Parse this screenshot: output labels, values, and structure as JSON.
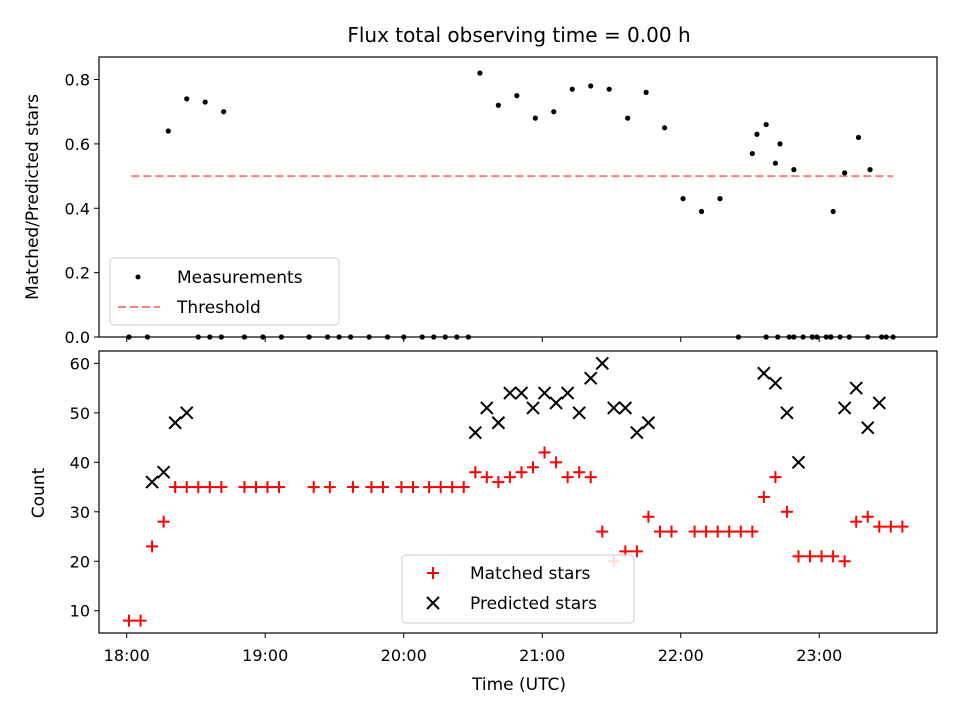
{
  "chart_data": [
    {
      "type": "scatter",
      "title": "Flux total observing time = 0.00 h",
      "ylabel": "Matched/Predicted stars",
      "ylim": [
        0,
        0.87
      ],
      "xlim_hours": [
        17.8,
        23.85
      ],
      "yticks": [
        0.0,
        0.2,
        0.4,
        0.6,
        0.8
      ],
      "ytick_labels": [
        "0.0",
        "0.2",
        "0.4",
        "0.6",
        "0.8"
      ],
      "legend": {
        "placement": "lower-left",
        "entries": [
          "Measurements",
          "Threshold"
        ]
      },
      "series": [
        {
          "name": "Measurements",
          "marker": "dot",
          "color": "#000000",
          "points": [
            [
              "18:01",
              0.0
            ],
            [
              "18:09",
              0.0
            ],
            [
              "18:18",
              0.64
            ],
            [
              "18:26",
              0.74
            ],
            [
              "18:34",
              0.73
            ],
            [
              "18:42",
              0.7
            ],
            [
              "18:31",
              0.0
            ],
            [
              "18:36",
              0.0
            ],
            [
              "18:41",
              0.0
            ],
            [
              "18:51",
              0.0
            ],
            [
              "18:59",
              0.0
            ],
            [
              "19:07",
              0.0
            ],
            [
              "19:19",
              0.0
            ],
            [
              "19:19",
              0.0
            ],
            [
              "19:27",
              0.0
            ],
            [
              "19:32",
              0.0
            ],
            [
              "19:37",
              0.0
            ],
            [
              "19:45",
              0.0
            ],
            [
              "19:53",
              0.0
            ],
            [
              "20:00",
              0.0
            ],
            [
              "20:08",
              0.0
            ],
            [
              "20:13",
              0.0
            ],
            [
              "20:18",
              0.0
            ],
            [
              "20:23",
              0.0
            ],
            [
              "20:28",
              0.0
            ],
            [
              "20:33",
              0.82
            ],
            [
              "20:41",
              0.72
            ],
            [
              "20:49",
              0.75
            ],
            [
              "20:57",
              0.68
            ],
            [
              "21:05",
              0.7
            ],
            [
              "21:13",
              0.77
            ],
            [
              "21:21",
              0.78
            ],
            [
              "21:29",
              0.77
            ],
            [
              "21:37",
              0.68
            ],
            [
              "21:45",
              0.76
            ],
            [
              "21:53",
              0.65
            ],
            [
              "22:01",
              0.43
            ],
            [
              "22:09",
              0.39
            ],
            [
              "22:17",
              0.43
            ],
            [
              "22:25",
              0.0
            ],
            [
              "22:33",
              0.63
            ],
            [
              "22:41",
              0.54
            ],
            [
              "22:49",
              0.0
            ],
            [
              "22:57",
              0.0
            ],
            [
              "23:05",
              0.0
            ],
            [
              "23:13",
              0.0
            ],
            [
              "23:21",
              0.0
            ],
            [
              "23:29",
              0.0
            ],
            [
              "22:37",
              0.0
            ],
            [
              "22:42",
              0.0
            ],
            [
              "22:47",
              0.0
            ],
            [
              "22:53",
              0.0
            ],
            [
              "22:59",
              0.0
            ],
            [
              "23:05",
              0.0
            ],
            [
              "22:31",
              0.57
            ],
            [
              "22:37",
              0.66
            ],
            [
              "22:43",
              0.6
            ],
            [
              "22:49",
              0.52
            ],
            [
              "22:57",
              0.0
            ],
            [
              "23:03",
              0.0
            ],
            [
              "23:09",
              0.0
            ],
            [
              "23:06",
              0.39
            ],
            [
              "23:11",
              0.51
            ],
            [
              "23:17",
              0.62
            ],
            [
              "23:22",
              0.52
            ],
            [
              "23:27",
              0.0
            ],
            [
              "23:32",
              0.0
            ]
          ]
        },
        {
          "name": "Threshold",
          "style": "dashed",
          "color": "#ff7f7f",
          "x": [
            "18:02",
            "23:32"
          ],
          "y": [
            0.5,
            0.5
          ]
        }
      ]
    },
    {
      "type": "scatter",
      "xlabel": "Time (UTC)",
      "ylabel": "Count",
      "ylim": [
        5.5,
        62.5
      ],
      "xlim_hours": [
        17.8,
        23.85
      ],
      "yticks": [
        10,
        20,
        30,
        40,
        50,
        60
      ],
      "ytick_labels": [
        "10",
        "20",
        "30",
        "40",
        "50",
        "60"
      ],
      "xticks": [
        "18:00",
        "19:00",
        "20:00",
        "21:00",
        "22:00",
        "23:00"
      ],
      "legend": {
        "placement": "lower-center",
        "entries": [
          "Matched stars",
          "Predicted stars"
        ]
      },
      "series": [
        {
          "name": "Matched stars",
          "marker": "plus",
          "color": "#ff0000",
          "points": [
            [
              "18:01",
              8
            ],
            [
              "18:06",
              8
            ],
            [
              "18:11",
              23
            ],
            [
              "18:16",
              28
            ],
            [
              "18:21",
              35
            ],
            [
              "18:26",
              35
            ],
            [
              "18:31",
              35
            ],
            [
              "18:36",
              35
            ],
            [
              "18:41",
              35
            ],
            [
              "18:51",
              35
            ],
            [
              "18:56",
              35
            ],
            [
              "19:01",
              35
            ],
            [
              "19:06",
              35
            ],
            [
              "19:21",
              35
            ],
            [
              "19:28",
              35
            ],
            [
              "19:38",
              35
            ],
            [
              "19:46",
              35
            ],
            [
              "19:51",
              35
            ],
            [
              "19:59",
              35
            ],
            [
              "20:04",
              35
            ],
            [
              "20:11",
              35
            ],
            [
              "20:16",
              35
            ],
            [
              "20:21",
              35
            ],
            [
              "20:26",
              35
            ],
            [
              "20:31",
              38
            ],
            [
              "20:36",
              37
            ],
            [
              "20:41",
              36
            ],
            [
              "20:46",
              37
            ],
            [
              "20:51",
              38
            ],
            [
              "20:56",
              39
            ],
            [
              "21:01",
              42
            ],
            [
              "21:06",
              40
            ],
            [
              "21:11",
              37
            ],
            [
              "21:16",
              38
            ],
            [
              "21:21",
              37
            ],
            [
              "21:26",
              26
            ],
            [
              "21:31",
              20
            ],
            [
              "21:36",
              22
            ],
            [
              "21:41",
              22
            ],
            [
              "21:46",
              29
            ],
            [
              "21:51",
              26
            ],
            [
              "21:56",
              26
            ],
            [
              "22:06",
              26
            ],
            [
              "22:11",
              26
            ],
            [
              "22:16",
              26
            ],
            [
              "22:21",
              26
            ],
            [
              "22:26",
              26
            ],
            [
              "22:31",
              26
            ],
            [
              "22:36",
              33
            ],
            [
              "22:41",
              37
            ],
            [
              "22:46",
              30
            ],
            [
              "22:51",
              21
            ],
            [
              "22:56",
              21
            ],
            [
              "23:01",
              21
            ],
            [
              "23:06",
              21
            ],
            [
              "23:11",
              20
            ],
            [
              "23:16",
              28
            ],
            [
              "23:21",
              29
            ],
            [
              "23:26",
              27
            ],
            [
              "23:31",
              27
            ],
            [
              "23:36",
              27
            ]
          ]
        },
        {
          "name": "Predicted stars",
          "marker": "x",
          "color": "#000000",
          "points": [
            [
              "18:11",
              36
            ],
            [
              "18:16",
              38
            ],
            [
              "18:21",
              48
            ],
            [
              "18:26",
              50
            ],
            [
              "20:31",
              46
            ],
            [
              "20:36",
              51
            ],
            [
              "20:41",
              48
            ],
            [
              "20:46",
              54
            ],
            [
              "20:51",
              54
            ],
            [
              "20:56",
              51
            ],
            [
              "21:01",
              54
            ],
            [
              "21:06",
              52
            ],
            [
              "21:11",
              54
            ],
            [
              "21:16",
              50
            ],
            [
              "21:21",
              57
            ],
            [
              "21:26",
              60
            ],
            [
              "21:31",
              51
            ],
            [
              "21:36",
              51
            ],
            [
              "21:41",
              46
            ],
            [
              "21:46",
              48
            ],
            [
              "22:36",
              58
            ],
            [
              "22:41",
              56
            ],
            [
              "22:46",
              50
            ],
            [
              "22:51",
              40
            ],
            [
              "23:11",
              51
            ],
            [
              "23:16",
              55
            ],
            [
              "23:21",
              47
            ],
            [
              "23:26",
              52
            ]
          ]
        }
      ]
    }
  ]
}
